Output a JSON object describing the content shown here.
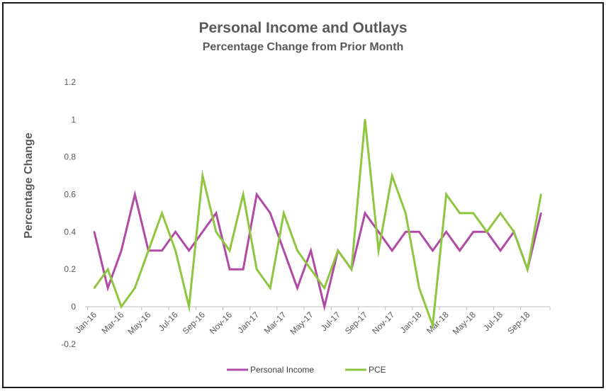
{
  "chart_data": {
    "type": "line",
    "title": "Personal Income and Outlays",
    "subtitle": "Percentage Change from Prior Month",
    "xlabel": "",
    "ylabel": "Percentage Change",
    "ylim": [
      -0.2,
      1.2
    ],
    "yticks": [
      "-0.2",
      "0",
      "0.2",
      "0.4",
      "0.6",
      "0.8",
      "1",
      "1.2"
    ],
    "grid": false,
    "legend_position": "bottom",
    "categories": [
      "Jan-16",
      "Feb-16",
      "Mar-16",
      "Apr-16",
      "May-16",
      "Jun-16",
      "Jul-16",
      "Aug-16",
      "Sep-16",
      "Oct-16",
      "Nov-16",
      "Dec-16",
      "Jan-17",
      "Feb-17",
      "Mar-17",
      "Apr-17",
      "May-17",
      "Jun-17",
      "Jul-17",
      "Aug-17",
      "Sep-17",
      "Oct-17",
      "Nov-17",
      "Dec-17",
      "Jan-18",
      "Feb-18",
      "Mar-18",
      "Apr-18",
      "May-18",
      "Jun-18",
      "Jul-18",
      "Aug-18",
      "Sep-18",
      "Oct-18"
    ],
    "tick_labels": [
      "Jan-16",
      "Mar-16",
      "May-16",
      "Jul-16",
      "Sep-16",
      "Nov-16",
      "Jan-17",
      "Mar-17",
      "May-17",
      "Jul-17",
      "Sep-17",
      "Nov-17",
      "Jan-18",
      "Mar-18",
      "May-18",
      "Jul-18",
      "Sep-18"
    ],
    "series": [
      {
        "name": "Personal Income",
        "color": "#b04aa4",
        "values": [
          0.4,
          0.1,
          0.3,
          0.6,
          0.3,
          0.3,
          0.4,
          0.3,
          0.4,
          0.5,
          0.2,
          0.2,
          0.6,
          0.5,
          0.3,
          0.1,
          0.3,
          0.0,
          0.3,
          0.2,
          0.5,
          0.4,
          0.3,
          0.4,
          0.4,
          0.3,
          0.4,
          0.3,
          0.4,
          0.4,
          0.3,
          0.4,
          0.2,
          0.5
        ]
      },
      {
        "name": "PCE",
        "color": "#8ec63f",
        "values": [
          0.1,
          0.2,
          0.0,
          0.1,
          0.3,
          0.5,
          0.3,
          0.0,
          0.7,
          0.4,
          0.3,
          0.6,
          0.2,
          0.1,
          0.5,
          0.3,
          0.2,
          0.1,
          0.3,
          0.2,
          1.0,
          0.3,
          0.7,
          0.5,
          0.1,
          -0.1,
          0.6,
          0.5,
          0.5,
          0.4,
          0.5,
          0.4,
          0.2,
          0.6
        ]
      }
    ]
  }
}
